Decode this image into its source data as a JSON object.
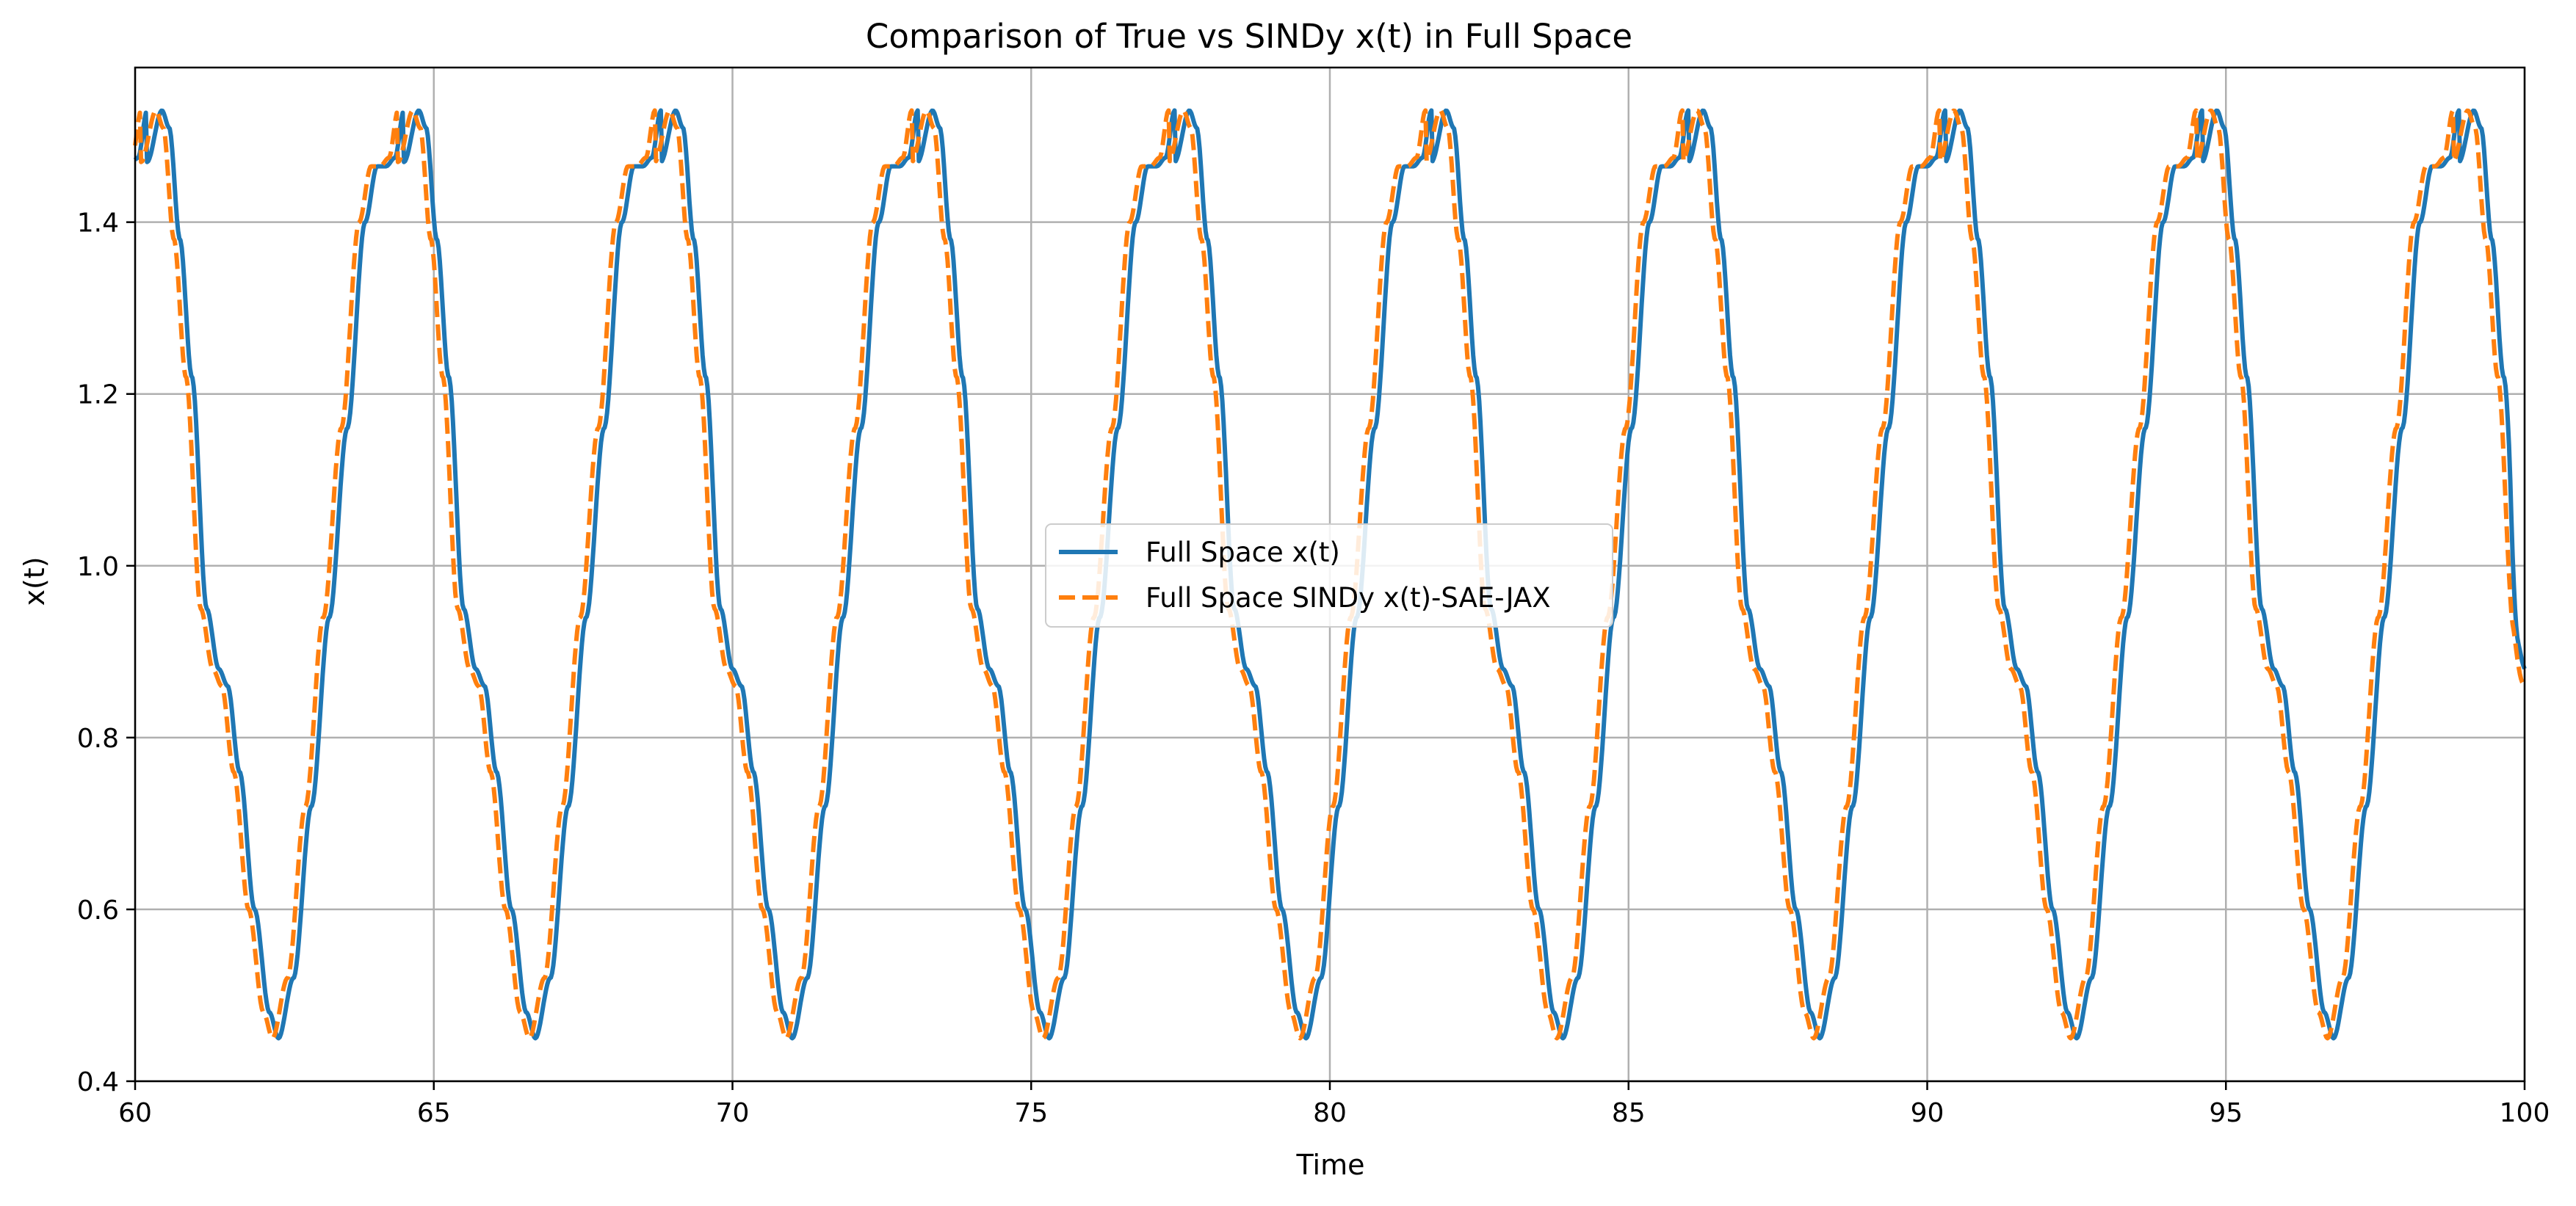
{
  "chart_data": {
    "type": "line",
    "title": "Comparison of True vs SINDy x(t) in Full Space",
    "xlabel": "Time",
    "ylabel": "x(t)",
    "xlim": [
      60,
      100
    ],
    "ylim": [
      0.4,
      1.58
    ],
    "xticks": [
      60,
      65,
      70,
      75,
      80,
      85,
      90,
      95,
      100
    ],
    "yticks": [
      0.4,
      0.6,
      0.8,
      1.0,
      1.2,
      1.4
    ],
    "xtick_labels": [
      "60",
      "65",
      "70",
      "75",
      "80",
      "85",
      "90",
      "95",
      "100"
    ],
    "ytick_labels": [
      "0.4",
      "0.6",
      "0.8",
      "1.0",
      "1.2",
      "1.4"
    ],
    "grid": true,
    "legend_position": "center",
    "period": 4.3,
    "series": [
      {
        "name": "Full Space x(t)",
        "color": "#1f77b4",
        "style": "solid",
        "phase_shift": 0.0,
        "end_value": 0.88,
        "peak_times": [
          60.45,
          64.75,
          69.05,
          73.35,
          77.65,
          81.95,
          86.25,
          90.55,
          94.85,
          99.15
        ],
        "trough_times": [
          62.4,
          66.7,
          71.0,
          75.3,
          79.6,
          83.9,
          88.2,
          92.5,
          96.8
        ],
        "peak_value": 1.53,
        "trough_value": 0.45
      },
      {
        "name": "Full Space SINDy x(t)-SAE-JAX",
        "color": "#ff7f0e",
        "style": "dashed",
        "phase_shift": -0.1,
        "end_value": 0.86,
        "peak_times": [
          60.35,
          64.65,
          68.95,
          73.25,
          77.55,
          81.85,
          86.15,
          90.45,
          94.75,
          99.05
        ],
        "trough_times": [
          62.3,
          66.6,
          70.9,
          75.2,
          79.5,
          83.8,
          88.1,
          92.4,
          96.7
        ],
        "peak_value": 1.53,
        "trough_value": 0.45
      }
    ],
    "cycle_shape": {
      "t_offsets": [
        -0.25,
        0.0,
        0.12,
        0.3,
        0.5,
        0.75,
        0.95,
        1.1,
        1.3,
        1.55,
        1.8,
        1.95,
        2.2,
        2.5,
        2.8,
        3.1,
        3.4,
        3.6,
        3.75,
        3.9,
        4.05
      ],
      "values": [
        1.47,
        1.53,
        1.51,
        1.38,
        1.22,
        0.95,
        0.88,
        0.86,
        0.76,
        0.6,
        0.48,
        0.45,
        0.52,
        0.72,
        0.94,
        1.16,
        1.4,
        1.465,
        1.465,
        1.475,
        1.53
      ]
    }
  }
}
